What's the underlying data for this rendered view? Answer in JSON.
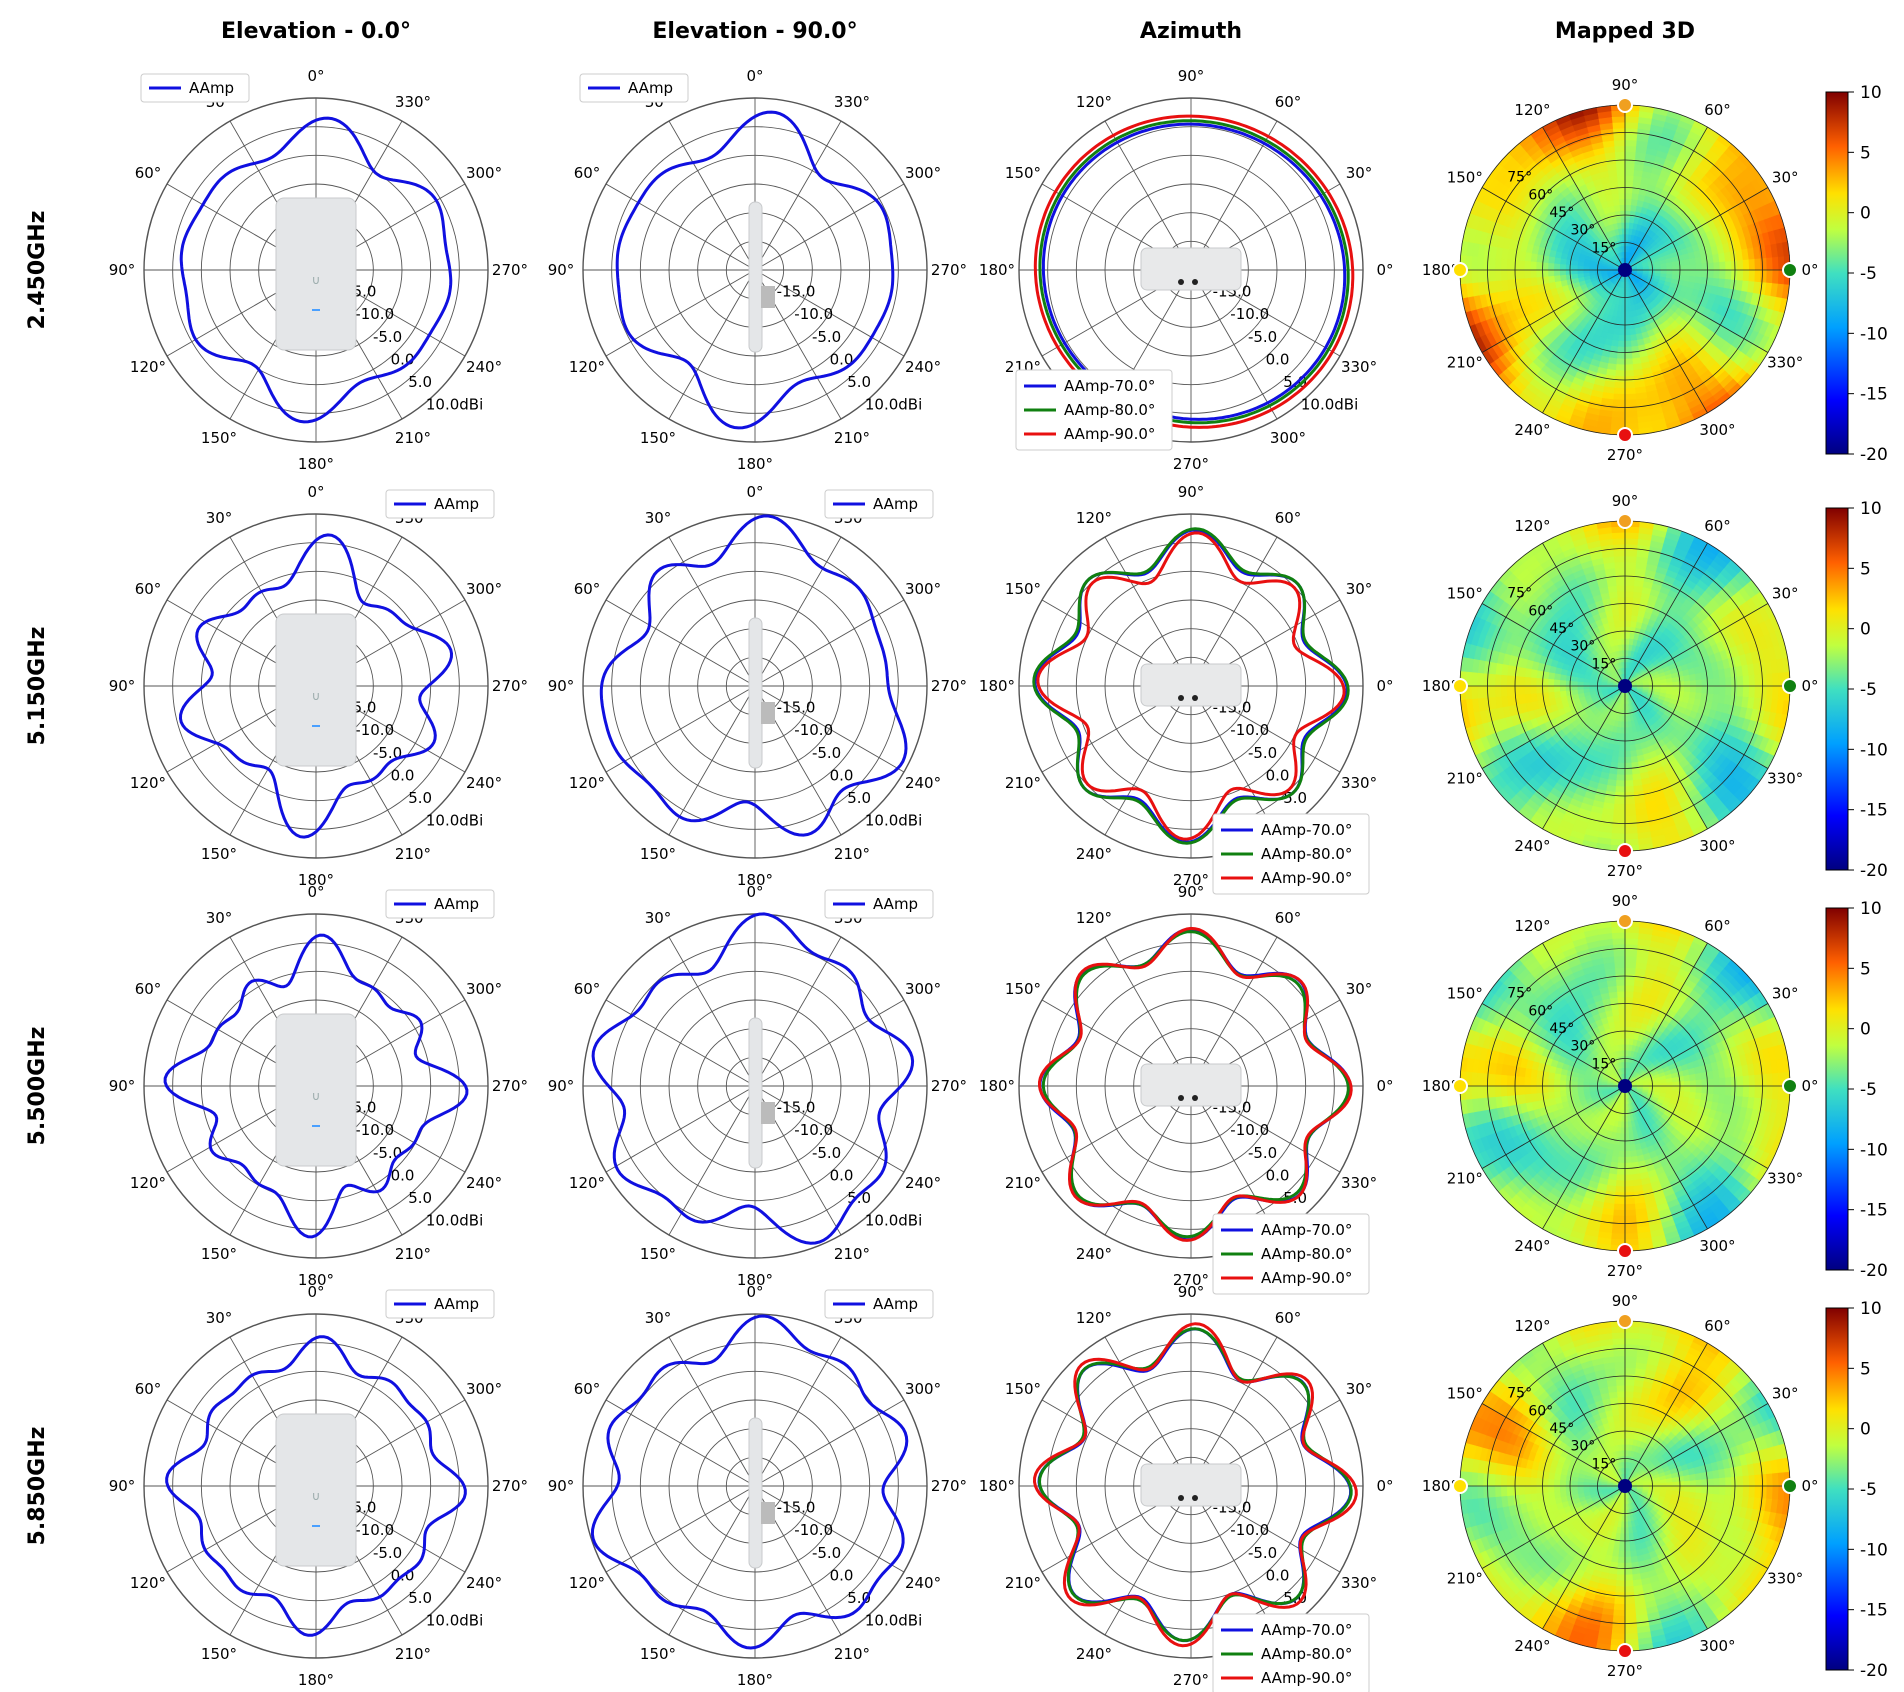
{
  "columns": [
    "Elevation - 0.0°",
    "Elevation - 90.0°",
    "Azimuth",
    "Mapped 3D"
  ],
  "rows": [
    "2.450GHz",
    "5.150GHz",
    "5.500GHz",
    "5.850GHz"
  ],
  "colors": {
    "blue": "#1010e0",
    "green": "#108010",
    "red": "#e81010",
    "grid": "#555555"
  },
  "chart_data": {
    "type": "polar",
    "radial_ticks": [
      "-15.0",
      "-10.0",
      "-5.0",
      "0.0",
      "5.0",
      "10.0dBi"
    ],
    "rlim": [
      -20,
      10
    ],
    "angle_ticks": [
      "0°",
      "30°",
      "60°",
      "90°",
      "120°",
      "150°",
      "180°",
      "210°",
      "240°",
      "270°",
      "300°",
      "330°"
    ],
    "legend_single": "AAmp",
    "legend_azimuth": [
      "AAmp-70.0°",
      "AAmp-80.0°",
      "AAmp-90.0°"
    ],
    "mapped_rings": [
      "15°",
      "30°",
      "45°",
      "60°",
      "75°"
    ],
    "colorbar": {
      "ticks": [
        "10",
        "5",
        "0",
        "-5",
        "-10",
        "-15",
        "-20"
      ],
      "range": [
        -20,
        10
      ]
    },
    "patterns": [
      {
        "frequency": "2.450GHz",
        "elev0": {
          "base": 3.0,
          "harmonics": [
            [
              4,
              1.2,
              0
            ],
            [
              6,
              1.5,
              0.4
            ],
            [
              8,
              1.0,
              1.0
            ]
          ]
        },
        "elev90": {
          "base": 3.5,
          "harmonics": [
            [
              4,
              1.6,
              0.2
            ],
            [
              6,
              1.8,
              0.7
            ],
            [
              8,
              0.9,
              1.2
            ]
          ]
        },
        "azimuth": [
          {
            "name": "AAmp-70.0°",
            "base": 6.0,
            "harmonics": [
              [
                1,
                0.6,
                0.5
              ],
              [
                2,
                0.5,
                1.0
              ]
            ]
          },
          {
            "name": "AAmp-80.0°",
            "base": 6.6,
            "harmonics": [
              [
                1,
                0.6,
                0.5
              ],
              [
                2,
                0.5,
                1.0
              ]
            ]
          },
          {
            "name": "AAmp-90.0°",
            "base": 7.4,
            "harmonics": [
              [
                1,
                0.6,
                0.5
              ],
              [
                2,
                0.5,
                1.0
              ]
            ]
          }
        ],
        "mapped_center": -8,
        "mapped_edge": 3
      },
      {
        "frequency": "5.150GHz",
        "elev0": {
          "base": 0.5,
          "harmonics": [
            [
              4,
              2.0,
              0
            ],
            [
              6,
              2.5,
              0.6
            ],
            [
              10,
              1.6,
              1.0
            ]
          ]
        },
        "elev90": {
          "base": 5.0,
          "harmonics": [
            [
              3,
              2.0,
              0.3
            ],
            [
              7,
              1.8,
              0.9
            ],
            [
              9,
              1.2,
              0.2
            ]
          ]
        },
        "azimuth": [
          {
            "name": "AAmp-70.0°",
            "base": 4.0,
            "harmonics": [
              [
                8,
                2.5,
                0.2
              ],
              [
                4,
                0.8,
                0.5
              ]
            ]
          },
          {
            "name": "AAmp-80.0°",
            "base": 4.2,
            "harmonics": [
              [
                8,
                2.4,
                0.2
              ],
              [
                4,
                0.9,
                0.5
              ]
            ]
          },
          {
            "name": "AAmp-90.0°",
            "base": 2.8,
            "harmonics": [
              [
                8,
                3.0,
                0.25
              ],
              [
                4,
                1.0,
                0.5
              ]
            ]
          }
        ],
        "mapped_center": -4,
        "mapped_edge": -2
      },
      {
        "frequency": "5.500GHz",
        "elev0": {
          "base": 1.0,
          "harmonics": [
            [
              4,
              2.2,
              0.2
            ],
            [
              8,
              2.0,
              0.7
            ],
            [
              12,
              1.4,
              0.1
            ]
          ]
        },
        "elev90": {
          "base": 5.5,
          "harmonics": [
            [
              5,
              2.0,
              0.5
            ],
            [
              9,
              1.8,
              0.1
            ],
            [
              3,
              1.4,
              1.0
            ]
          ]
        },
        "azimuth": [
          {
            "name": "AAmp-70.0°",
            "base": 4.5,
            "harmonics": [
              [
                8,
                2.6,
                0.1
              ],
              [
                3,
                0.8,
                0.4
              ]
            ]
          },
          {
            "name": "AAmp-80.0°",
            "base": 4.2,
            "harmonics": [
              [
                8,
                2.4,
                0.1
              ],
              [
                3,
                0.9,
                0.4
              ]
            ]
          },
          {
            "name": "AAmp-90.0°",
            "base": 4.4,
            "harmonics": [
              [
                8,
                2.8,
                0.15
              ],
              [
                3,
                0.8,
                0.4
              ]
            ]
          }
        ],
        "mapped_center": -3,
        "mapped_edge": -2
      },
      {
        "frequency": "5.850GHz",
        "elev0": {
          "base": 2.5,
          "harmonics": [
            [
              8,
              1.4,
              0.3
            ],
            [
              12,
              1.0,
              0.6
            ],
            [
              4,
              1.2,
              0.1
            ]
          ]
        },
        "elev90": {
          "base": 6.0,
          "harmonics": [
            [
              6,
              1.6,
              0.6
            ],
            [
              10,
              1.5,
              0.2
            ],
            [
              3,
              1.0,
              0.9
            ]
          ]
        },
        "azimuth": [
          {
            "name": "AAmp-70.0°",
            "base": 4.0,
            "harmonics": [
              [
                8,
                3.2,
                0.3
              ],
              [
                3,
                0.7,
                0.4
              ]
            ]
          },
          {
            "name": "AAmp-80.0°",
            "base": 4.2,
            "harmonics": [
              [
                8,
                3.0,
                0.3
              ],
              [
                3,
                0.8,
                0.4
              ]
            ]
          },
          {
            "name": "AAmp-90.0°",
            "base": 4.5,
            "harmonics": [
              [
                8,
                3.6,
                0.35
              ],
              [
                3,
                0.8,
                0.4
              ]
            ]
          }
        ],
        "mapped_center": -3,
        "mapped_edge": 0
      }
    ]
  }
}
